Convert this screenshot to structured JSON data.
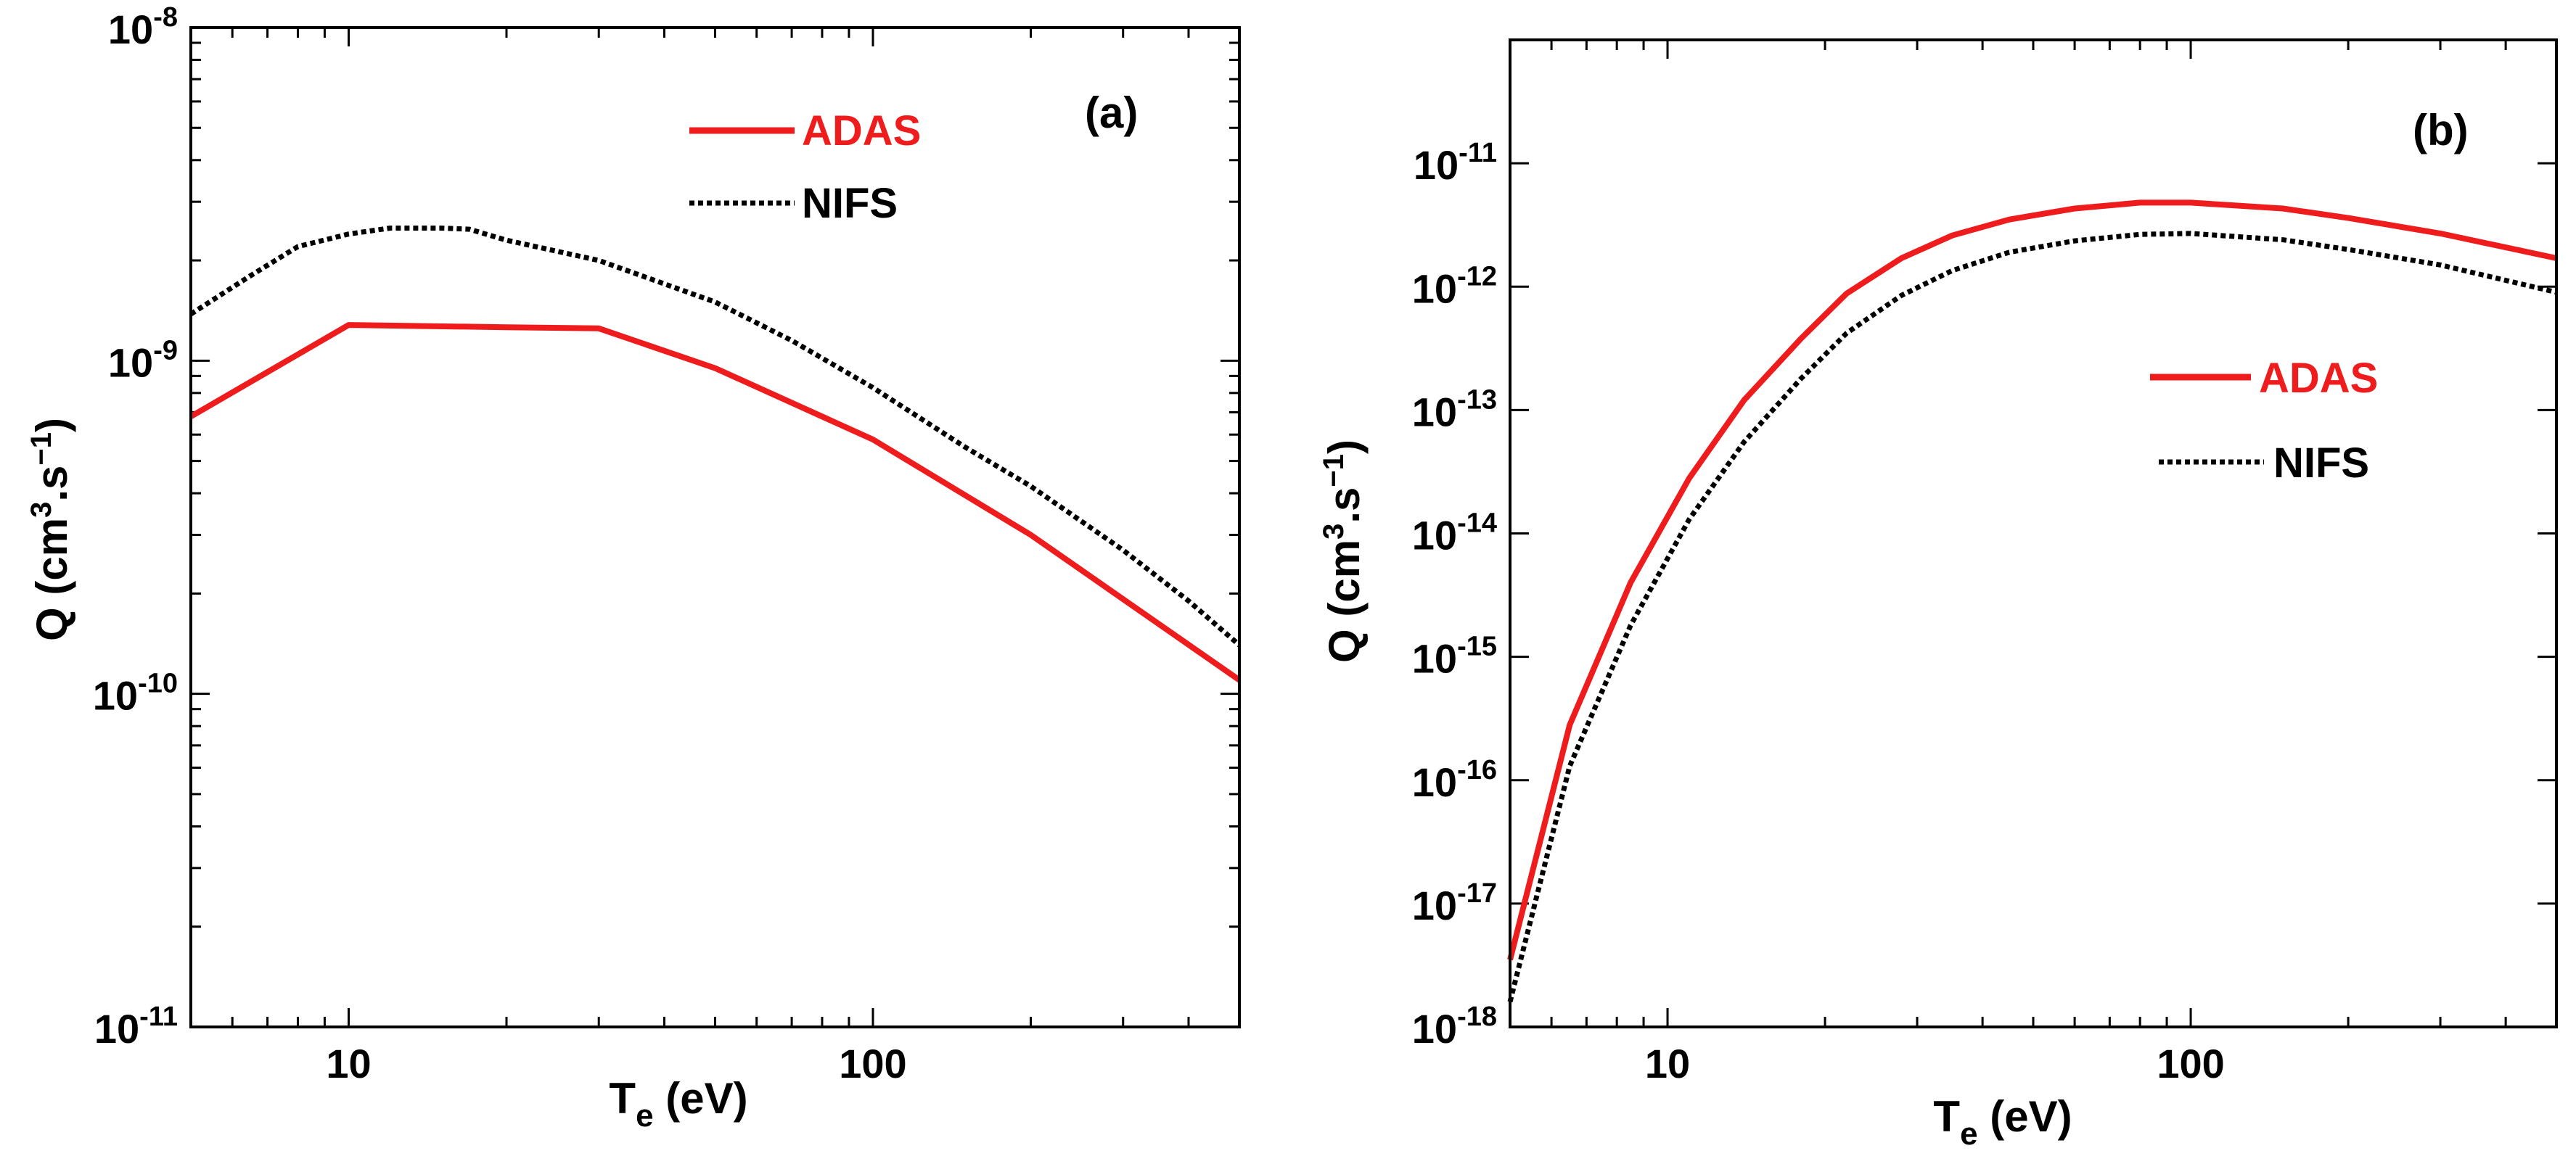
{
  "chart_data": [
    {
      "type": "line",
      "panel_label": "(a)",
      "xscale": "log",
      "yscale": "log",
      "xlim": [
        5,
        500
      ],
      "ylim": [
        1e-11,
        1e-08
      ],
      "xlabel": {
        "main": "T",
        "sub": "e",
        "unit": " (eV)"
      },
      "ylabel": {
        "pre": "Q (cm",
        "sup1": "3",
        "mid": ".s",
        "sup2": "−1",
        "post": ")"
      },
      "xticks": [
        {
          "value": 10,
          "label": "10"
        },
        {
          "value": 100,
          "label": "100"
        }
      ],
      "yticks": [
        {
          "value": 1e-08,
          "base": "10",
          "exp": "-8"
        },
        {
          "value": 1e-09,
          "base": "10",
          "exp": "-9"
        },
        {
          "value": 1e-10,
          "base": "10",
          "exp": "-10"
        },
        {
          "value": 1e-11,
          "base": "10",
          "exp": "-11"
        }
      ],
      "legend_position": "top-right",
      "series": [
        {
          "name": "ADAS",
          "color": "#ee1c1c",
          "style": "solid",
          "x": [
            5,
            10,
            20,
            30,
            50,
            100,
            200,
            500
          ],
          "y": [
            6.8e-10,
            1.28e-09,
            1.26e-09,
            1.25e-09,
            9.5e-10,
            5.8e-10,
            3e-10,
            1.1e-10
          ]
        },
        {
          "name": "NIFS",
          "color": "#000000",
          "style": "dotted",
          "x": [
            5,
            6.5,
            8,
            10,
            12,
            15,
            17,
            20,
            30,
            50,
            70,
            100,
            150,
            200,
            300,
            400,
            500
          ],
          "y": [
            1.38e-09,
            1.8e-09,
            2.2e-09,
            2.4e-09,
            2.5e-09,
            2.5e-09,
            2.48e-09,
            2.3e-09,
            2e-09,
            1.5e-09,
            1.15e-09,
            8.3e-10,
            5.5e-10,
            4.2e-10,
            2.7e-10,
            1.9e-10,
            1.4e-10
          ]
        }
      ]
    },
    {
      "type": "line",
      "panel_label": "(b)",
      "xscale": "log",
      "yscale": "log",
      "xlim": [
        5,
        500
      ],
      "ylim": [
        1e-18,
        1e-10
      ],
      "xlabel": {
        "main": "T",
        "sub": "e",
        "unit": " (eV)"
      },
      "ylabel": {
        "pre": "Q (cm",
        "sup1": "3",
        "mid": ".s",
        "sup2": "−1",
        "post": ")"
      },
      "xticks": [
        {
          "value": 10,
          "label": "10"
        },
        {
          "value": 100,
          "label": "100"
        }
      ],
      "yticks": [
        {
          "value": 1e-11,
          "base": "10",
          "exp": "-11"
        },
        {
          "value": 1e-12,
          "base": "10",
          "exp": "-12"
        },
        {
          "value": 1e-13,
          "base": "10",
          "exp": "-13"
        },
        {
          "value": 1e-14,
          "base": "10",
          "exp": "-14"
        },
        {
          "value": 1e-15,
          "base": "10",
          "exp": "-15"
        },
        {
          "value": 1e-16,
          "base": "10",
          "exp": "-16"
        },
        {
          "value": 1e-17,
          "base": "10",
          "exp": "-17"
        },
        {
          "value": 1e-18,
          "base": "10",
          "exp": "-18"
        }
      ],
      "legend_position": "center-right",
      "series": [
        {
          "name": "ADAS",
          "color": "#ee1c1c",
          "style": "solid",
          "x": [
            5,
            6.5,
            8.5,
            11,
            14,
            18,
            22,
            28,
            35,
            45,
            60,
            80,
            100,
            150,
            200,
            300,
            500
          ],
          "y": [
            3.5e-18,
            2.8e-16,
            4e-15,
            2.8e-14,
            1.2e-13,
            3.8e-13,
            8.8e-13,
            1.7e-12,
            2.6e-12,
            3.5e-12,
            4.3e-12,
            4.8e-12,
            4.8e-12,
            4.3e-12,
            3.6e-12,
            2.7e-12,
            1.7e-12
          ]
        },
        {
          "name": "NIFS",
          "color": "#000000",
          "style": "dotted",
          "x": [
            5,
            6.5,
            8.5,
            11,
            14,
            18,
            22,
            28,
            35,
            45,
            60,
            80,
            100,
            150,
            200,
            300,
            500
          ],
          "y": [
            1.6e-18,
            1.3e-16,
            1.8e-15,
            1.3e-14,
            5.5e-14,
            1.8e-13,
            4.2e-13,
            8.5e-13,
            1.35e-12,
            1.9e-12,
            2.35e-12,
            2.65e-12,
            2.7e-12,
            2.4e-12,
            2e-12,
            1.5e-12,
            9e-13
          ]
        }
      ]
    }
  ]
}
